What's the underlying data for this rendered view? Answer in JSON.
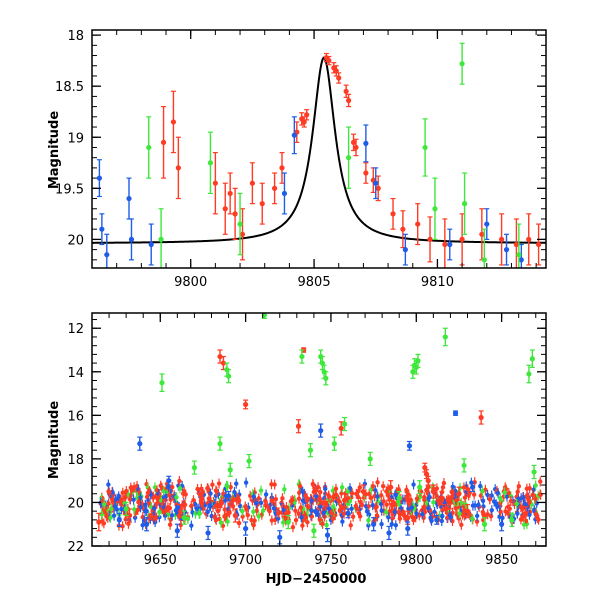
{
  "colors": {
    "red": "#ff3b24",
    "blue": "#1f5ce8",
    "green": "#3ee83a",
    "curve": "#000000",
    "axis": "#000000"
  },
  "chart_data": [
    {
      "id": "top",
      "type": "scatter",
      "title": "",
      "xlabel": "",
      "ylabel": "Magnitude",
      "xlim": [
        9796.0,
        9814.4
      ],
      "ylim": [
        20.28,
        17.95
      ],
      "y_inverted": true,
      "xticks": [
        9800,
        9805,
        9810
      ],
      "xtick_labels": [
        "9800",
        "9805",
        "9810"
      ],
      "yticks": [
        18,
        18.5,
        19,
        19.5,
        20
      ],
      "ytick_labels": [
        "18",
        "18.5",
        "19",
        "19.5",
        "20"
      ],
      "model_curve": {
        "type": "microlensing-fit",
        "t0": 9805.4,
        "baseline": 20.04,
        "peak": 18.22,
        "tE": 1.85
      },
      "series": [
        {
          "name": "red",
          "color_key": "red",
          "points": [
            [
              9798.9,
              19.05,
              0.35
            ],
            [
              9799.3,
              18.85,
              0.3
            ],
            [
              9799.5,
              19.3,
              0.3
            ],
            [
              9801.0,
              19.45,
              0.3
            ],
            [
              9801.4,
              19.7,
              0.25
            ],
            [
              9801.6,
              19.55,
              0.2
            ],
            [
              9801.8,
              19.75,
              0.25
            ],
            [
              9802.1,
              19.95,
              0.25
            ],
            [
              9802.5,
              19.45,
              0.2
            ],
            [
              9802.9,
              19.65,
              0.2
            ],
            [
              9803.4,
              19.5,
              0.15
            ],
            [
              9803.7,
              19.3,
              0.15
            ],
            [
              9804.3,
              18.95,
              0.1
            ],
            [
              9804.5,
              18.82,
              0.06
            ],
            [
              9804.6,
              18.85,
              0.05
            ],
            [
              9804.7,
              18.78,
              0.05
            ],
            [
              9805.5,
              18.22,
              0.04
            ],
            [
              9805.6,
              18.25,
              0.04
            ],
            [
              9805.8,
              18.32,
              0.05
            ],
            [
              9805.9,
              18.35,
              0.05
            ],
            [
              9806.0,
              18.42,
              0.05
            ],
            [
              9806.3,
              18.55,
              0.06
            ],
            [
              9806.4,
              18.64,
              0.06
            ],
            [
              9806.6,
              19.05,
              0.08
            ],
            [
              9806.7,
              19.1,
              0.08
            ],
            [
              9807.1,
              19.35,
              0.1
            ],
            [
              9807.4,
              19.42,
              0.12
            ],
            [
              9807.6,
              19.5,
              0.12
            ],
            [
              9808.2,
              19.75,
              0.15
            ],
            [
              9808.6,
              19.9,
              0.18
            ],
            [
              9809.2,
              19.85,
              0.2
            ],
            [
              9809.7,
              20.0,
              0.22
            ],
            [
              9810.3,
              20.05,
              0.25
            ],
            [
              9811.0,
              20.0,
              0.25
            ],
            [
              9811.8,
              19.95,
              0.25
            ],
            [
              9812.6,
              20.0,
              0.25
            ],
            [
              9813.2,
              20.05,
              0.25
            ],
            [
              9813.7,
              20.0,
              0.25
            ],
            [
              9814.1,
              20.05,
              0.2
            ]
          ]
        },
        {
          "name": "blue",
          "color_key": "blue",
          "points": [
            [
              9796.3,
              19.4,
              0.18
            ],
            [
              9796.4,
              19.9,
              0.15
            ],
            [
              9796.6,
              20.15,
              0.2
            ],
            [
              9797.5,
              19.6,
              0.2
            ],
            [
              9797.6,
              20.0,
              0.2
            ],
            [
              9798.4,
              20.05,
              0.2
            ],
            [
              9803.8,
              19.55,
              0.2
            ],
            [
              9804.2,
              18.98,
              0.18
            ],
            [
              9807.1,
              19.06,
              0.18
            ],
            [
              9807.5,
              19.45,
              0.15
            ],
            [
              9808.7,
              20.1,
              0.15
            ],
            [
              9810.5,
              20.05,
              0.15
            ],
            [
              9812.0,
              19.85,
              0.15
            ],
            [
              9812.8,
              20.1,
              0.15
            ],
            [
              9813.4,
              20.2,
              0.15
            ]
          ]
        },
        {
          "name": "green",
          "color_key": "green",
          "points": [
            [
              9798.3,
              19.1,
              0.3
            ],
            [
              9798.8,
              20.0,
              0.3
            ],
            [
              9800.8,
              19.25,
              0.3
            ],
            [
              9802.0,
              19.85,
              0.3
            ],
            [
              9806.4,
              19.2,
              0.3
            ],
            [
              9809.5,
              19.1,
              0.28
            ],
            [
              9809.9,
              19.7,
              0.3
            ],
            [
              9811.0,
              18.28,
              0.2
            ],
            [
              9811.1,
              19.65,
              0.3
            ],
            [
              9811.9,
              20.2,
              0.3
            ],
            [
              9813.3,
              20.15,
              0.3
            ]
          ]
        }
      ]
    },
    {
      "id": "bottom",
      "type": "scatter",
      "title": "",
      "xlabel": "HJD−2450000",
      "ylabel": "Magnitude",
      "xlim": [
        9610,
        9876
      ],
      "ylim": [
        22.0,
        11.3
      ],
      "y_inverted": true,
      "xticks": [
        9650,
        9700,
        9750,
        9800,
        9850
      ],
      "xtick_labels": [
        "9650",
        "9700",
        "9750",
        "9800",
        "9850"
      ],
      "yticks": [
        12,
        14,
        16,
        18,
        20,
        22
      ],
      "ytick_labels": [
        "12",
        "14",
        "16",
        "18",
        "20",
        "22"
      ],
      "baseline_band": {
        "mag": 20.1,
        "x_range": [
          9615,
          9873
        ]
      },
      "series": [
        {
          "name": "red",
          "color_key": "red",
          "points": [
            [
              9685,
              13.3,
              0.3
            ],
            [
              9687,
              13.6,
              0.3
            ],
            [
              9700,
              15.5,
              0.2
            ],
            [
              9731,
              16.5,
              0.3
            ],
            [
              9734,
              13.0,
              0.1
            ],
            [
              9756,
              16.6,
              0.3
            ],
            [
              9785,
              19.3,
              0.3
            ],
            [
              9805,
              18.4,
              0.2
            ],
            [
              9806,
              18.7,
              0.2
            ],
            [
              9807,
              19.0,
              0.2
            ],
            [
              9810,
              19.5,
              0.3
            ],
            [
              9815,
              19.8,
              0.3
            ],
            [
              9820,
              20.0,
              0.3
            ],
            [
              9838,
              16.1,
              0.3
            ],
            [
              9825,
              19.6,
              0.3
            ],
            [
              9614,
              20.9,
              0.4
            ],
            [
              9632,
              20.6,
              0.3
            ],
            [
              9662,
              20.4,
              0.3
            ],
            [
              9694,
              20.6,
              0.3
            ],
            [
              9724,
              20.5,
              0.3
            ],
            [
              9758,
              19.9,
              0.3
            ],
            [
              9769,
              19.5,
              0.3
            ],
            [
              9795,
              20.7,
              0.3
            ],
            [
              9830,
              20.4,
              0.3
            ],
            [
              9864,
              20.5,
              0.3
            ]
          ]
        },
        {
          "name": "blue",
          "color_key": "blue",
          "points": [
            [
              9638,
              17.3,
              0.3
            ],
            [
              9744,
              16.7,
              0.3
            ],
            [
              9796,
              17.4,
              0.2
            ],
            [
              9823,
              15.9,
              0.1
            ],
            [
              9660,
              21.3,
              0.3
            ],
            [
              9678,
              21.4,
              0.3
            ],
            [
              9700,
              21.2,
              0.3
            ],
            [
              9720,
              21.6,
              0.3
            ],
            [
              9748,
              21.5,
              0.3
            ],
            [
              9775,
              21.0,
              0.3
            ],
            [
              9784,
              21.4,
              0.3
            ],
            [
              9795,
              21.2,
              0.3
            ],
            [
              9833,
              19.3,
              0.2
            ],
            [
              9850,
              21.0,
              0.3
            ],
            [
              9626,
              20.8,
              0.3
            ],
            [
              9642,
              21.0,
              0.3
            ],
            [
              9690,
              19.7,
              0.2
            ],
            [
              9760,
              20.5,
              0.2
            ],
            [
              9812,
              20.8,
              0.2
            ],
            [
              9655,
              19.0,
              0.2
            ]
          ]
        },
        {
          "name": "green",
          "color_key": "green",
          "points": [
            [
              9651,
              14.5,
              0.4
            ],
            [
              9685,
              17.3,
              0.3
            ],
            [
              9689,
              13.9,
              0.3
            ],
            [
              9690,
              14.2,
              0.3
            ],
            [
              9691,
              18.5,
              0.3
            ],
            [
              9702,
              18.1,
              0.3
            ],
            [
              9711,
              11.4,
              0.15
            ],
            [
              9733,
              13.3,
              0.3
            ],
            [
              9738,
              17.6,
              0.3
            ],
            [
              9744,
              13.3,
              0.3
            ],
            [
              9745,
              13.6,
              0.3
            ],
            [
              9746,
              14.0,
              0.3
            ],
            [
              9747,
              14.3,
              0.3
            ],
            [
              9752,
              17.3,
              0.3
            ],
            [
              9758,
              16.4,
              0.3
            ],
            [
              9773,
              18.0,
              0.3
            ],
            [
              9798,
              14.0,
              0.3
            ],
            [
              9799,
              13.7,
              0.3
            ],
            [
              9800,
              13.8,
              0.3
            ],
            [
              9801,
              13.5,
              0.3
            ],
            [
              9817,
              12.4,
              0.4
            ],
            [
              9828,
              18.3,
              0.3
            ],
            [
              9866,
              14.1,
              0.4
            ],
            [
              9868,
              13.4,
              0.4
            ],
            [
              9869,
              18.6,
              0.3
            ],
            [
              9670,
              18.4,
              0.3
            ],
            [
              9725,
              20.9,
              0.3
            ],
            [
              9740,
              21.3,
              0.3
            ],
            [
              9790,
              19.8,
              0.3
            ],
            [
              9802,
              19.3,
              0.3
            ],
            [
              9840,
              21.0,
              0.3
            ],
            [
              9856,
              20.8,
              0.3
            ],
            [
              9664,
              20.7,
              0.3
            ],
            [
              9630,
              20.3,
              0.3
            ]
          ]
        }
      ]
    }
  ]
}
